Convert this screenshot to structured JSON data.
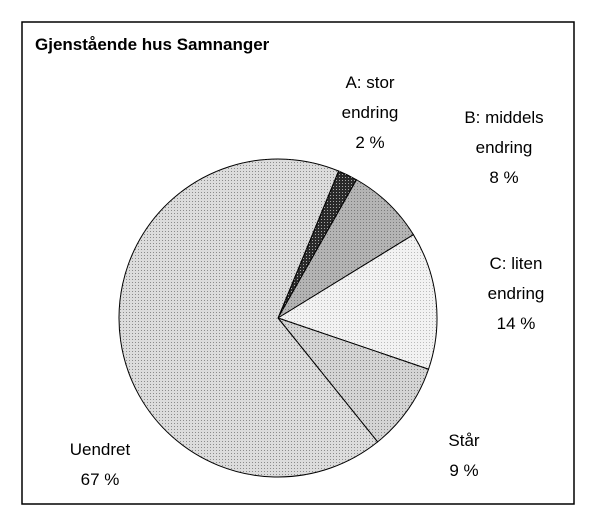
{
  "chart_data": {
    "type": "pie",
    "title": "Gjenstående hus Samnanger",
    "categories": [
      "A: stor endring",
      "B: middels endring",
      "C: liten endring",
      "Står",
      "Uendret"
    ],
    "values": [
      2,
      8,
      14,
      9,
      67
    ],
    "value_labels": [
      "2 %",
      "8 %",
      "14 %",
      "9 %",
      "67 %"
    ],
    "colors": [
      "#2a2a2a",
      "#b4b4b4",
      "#f2f2f2",
      "#d4d4d4",
      "#dcdcdc"
    ]
  }
}
